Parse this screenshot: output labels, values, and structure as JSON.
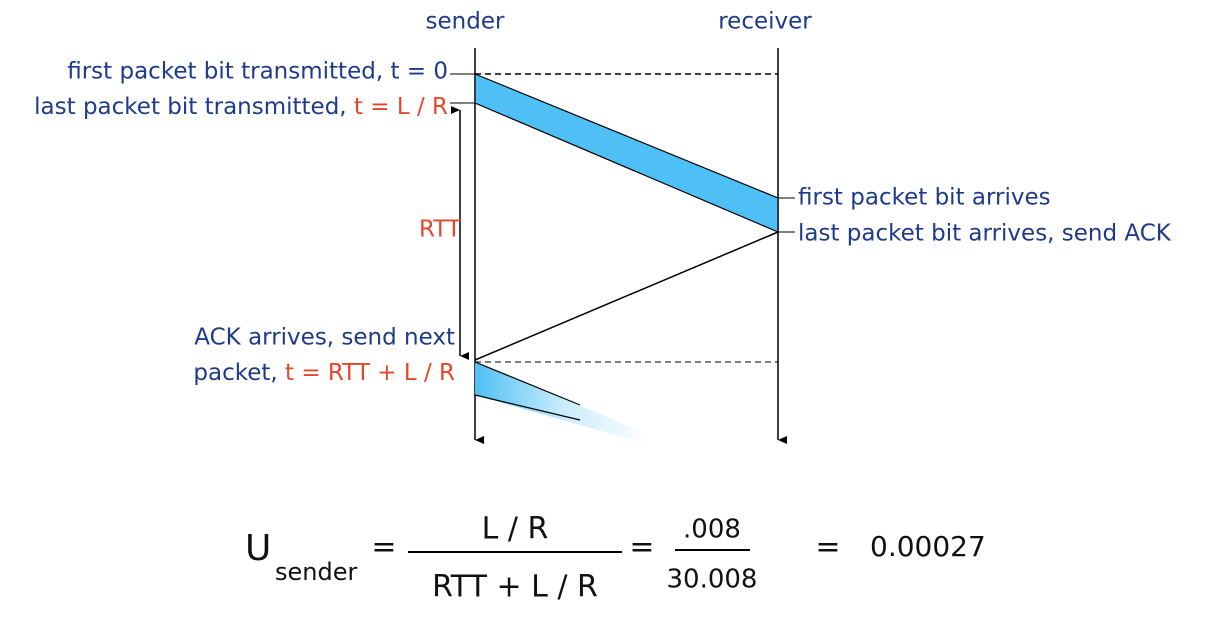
{
  "participants": {
    "sender": "sender",
    "receiver": "receiver"
  },
  "events": {
    "first_sent": "first packet bit transmitted, t = 0",
    "last_sent": {
      "text": "last packet bit transmitted, ",
      "time": "t = L / R"
    },
    "rtt": "RTT",
    "first_arrives": "first packet bit arrives",
    "last_arrives": "last packet bit arrives, send ACK",
    "ack_arrives": {
      "line1": "ACK arrives, send next",
      "line2": "packet, ",
      "time": "t = RTT + L / R"
    }
  },
  "formula": {
    "symbol": "U",
    "subscript": "sender",
    "equals": "=",
    "numerator": "L / R",
    "denominator": "RTT + L / R",
    "value_numerator": ".008",
    "value_denominator": "30.008",
    "result": "0.00027"
  }
}
